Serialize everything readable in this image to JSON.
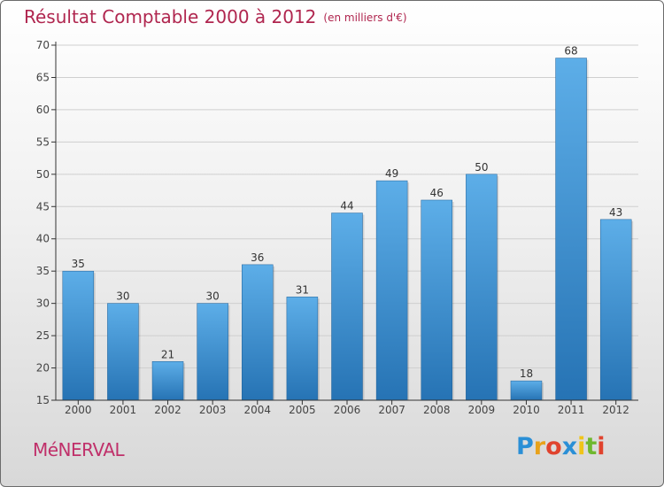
{
  "header": {
    "title": "Résultat Comptable 2000 à 2012",
    "subtitle": "(en milliers d'€)"
  },
  "footer": {
    "town": "MéNERVAL",
    "brand": "Proxiti"
  },
  "colors": {
    "title": "#b0264f",
    "bar_top": "#5daee8",
    "bar_bottom": "#2673b4",
    "axis": "#333333",
    "grid": "#cfcfcf"
  },
  "chart_data": {
    "type": "bar",
    "title": "Résultat Comptable 2000 à 2012",
    "subtitle": "(en milliers d'€)",
    "xlabel": "",
    "ylabel": "",
    "categories": [
      "2000",
      "2001",
      "2002",
      "2003",
      "2004",
      "2005",
      "2006",
      "2007",
      "2008",
      "2009",
      "2010",
      "2011",
      "2012"
    ],
    "values": [
      35,
      30,
      21,
      30,
      36,
      31,
      44,
      49,
      46,
      50,
      18,
      68,
      43
    ],
    "ylim": [
      15,
      70
    ],
    "yticks": [
      15,
      20,
      25,
      30,
      35,
      40,
      45,
      50,
      55,
      60,
      65,
      70
    ],
    "grid": true,
    "legend": "none"
  }
}
